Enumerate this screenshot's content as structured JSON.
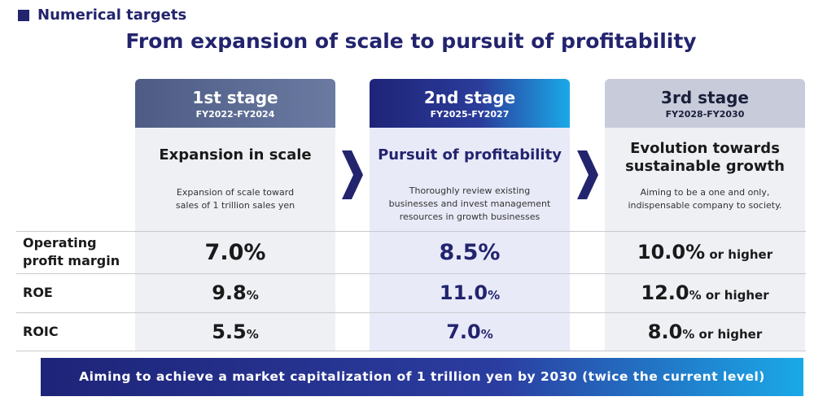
{
  "header": {
    "section": "Numerical targets",
    "title": "From expansion of scale to pursuit of profitability"
  },
  "stages": [
    {
      "name": "1st stage",
      "period": "FY2022-FY2024",
      "heading": [
        "Expansion in scale"
      ],
      "description": [
        "Expansion of scale toward",
        "sales of 1 trillion sales yen"
      ]
    },
    {
      "name": "2nd stage",
      "period": "FY2025-FY2027",
      "heading": [
        "Pursuit of profitability"
      ],
      "description": [
        "Thoroughly review existing",
        "businesses and invest management",
        "resources in growth businesses"
      ]
    },
    {
      "name": "3rd stage",
      "period": "FY2028-FY2030",
      "heading": [
        "Evolution towards",
        "sustainable growth"
      ],
      "description": [
        "Aiming to be a one and only,",
        "indispensable company to society."
      ]
    }
  ],
  "rows": [
    {
      "label": [
        "Operating",
        "profit margin"
      ],
      "cells": [
        {
          "main": "7.0%"
        },
        {
          "main": "8.5%"
        },
        {
          "main": "10.0%",
          "small": " or higher"
        }
      ]
    },
    {
      "label": [
        "ROE"
      ],
      "cells": [
        {
          "main": "9.8",
          "small": "%"
        },
        {
          "main": "11.0",
          "small": "%"
        },
        {
          "main": "12.0",
          "small": "% or higher"
        }
      ]
    },
    {
      "label": [
        "ROIC"
      ],
      "cells": [
        {
          "main": "5.5",
          "small": "%"
        },
        {
          "main": "7.0",
          "small": "%"
        },
        {
          "main": "8.0",
          "small": "% or higher"
        }
      ]
    }
  ],
  "banner": "Aiming to achieve a market capitalization of 1 trillion yen by 2030 (twice the current level)"
}
